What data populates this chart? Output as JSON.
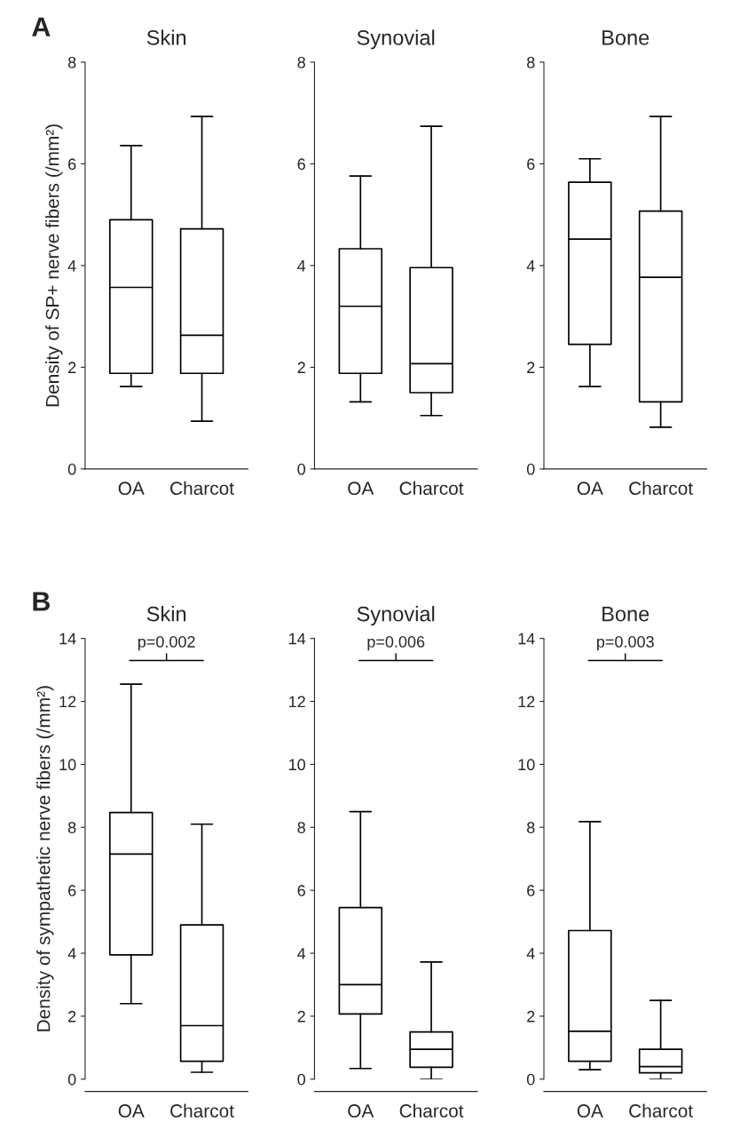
{
  "chart_data": [
    {
      "type": "box",
      "title": "Skin",
      "ylabel": "Density of SP+ nerve fibers (/mm²)",
      "annotations": [
        "A"
      ],
      "categories": [
        "OA",
        "Charcot"
      ],
      "ylim": [
        0,
        8
      ],
      "yticks": [
        0,
        2,
        4,
        6,
        8
      ],
      "grid": false,
      "boxes": [
        {
          "low": 1.62,
          "q1": 1.88,
          "median": 3.57,
          "q3": 4.9,
          "high": 6.36
        },
        {
          "low": 0.94,
          "q1": 1.88,
          "median": 2.63,
          "q3": 4.72,
          "high": 6.93
        }
      ]
    },
    {
      "type": "box",
      "title": "Synovial",
      "categories": [
        "OA",
        "Charcot"
      ],
      "ylim": [
        0,
        8
      ],
      "yticks": [
        0,
        2,
        4,
        6,
        8
      ],
      "grid": false,
      "boxes": [
        {
          "low": 1.32,
          "q1": 1.88,
          "median": 3.2,
          "q3": 4.33,
          "high": 5.76
        },
        {
          "low": 1.05,
          "q1": 1.5,
          "median": 2.07,
          "q3": 3.96,
          "high": 6.74
        }
      ]
    },
    {
      "type": "box",
      "title": "Bone",
      "categories": [
        "OA",
        "Charcot"
      ],
      "ylim": [
        0,
        8
      ],
      "yticks": [
        0,
        2,
        4,
        6,
        8
      ],
      "grid": false,
      "boxes": [
        {
          "low": 1.62,
          "q1": 2.45,
          "median": 4.52,
          "q3": 5.64,
          "high": 6.1
        },
        {
          "low": 0.82,
          "q1": 1.32,
          "median": 3.77,
          "q3": 5.07,
          "high": 6.93
        }
      ]
    },
    {
      "type": "box",
      "title": "Skin",
      "ylabel": "Density of sympathetic nerve fibers (/mm²)",
      "annotations": [
        "B",
        "p=0.002"
      ],
      "categories": [
        "OA",
        "Charcot"
      ],
      "ylim": [
        0,
        14
      ],
      "yticks": [
        0,
        2,
        4,
        6,
        8,
        10,
        12,
        14
      ],
      "grid": false,
      "boxes": [
        {
          "low": 2.4,
          "q1": 3.95,
          "median": 7.15,
          "q3": 8.47,
          "high": 12.55
        },
        {
          "low": 0.22,
          "q1": 0.57,
          "median": 1.7,
          "q3": 4.9,
          "high": 8.1
        }
      ]
    },
    {
      "type": "box",
      "title": "Synovial",
      "annotations": [
        "p=0.006"
      ],
      "categories": [
        "OA",
        "Charcot"
      ],
      "ylim": [
        0,
        14
      ],
      "yticks": [
        0,
        2,
        4,
        6,
        8,
        10,
        12,
        14
      ],
      "grid": false,
      "boxes": [
        {
          "low": 0.34,
          "q1": 2.07,
          "median": 3.0,
          "q3": 5.45,
          "high": 8.5
        },
        {
          "low": 0.0,
          "q1": 0.38,
          "median": 0.95,
          "q3": 1.5,
          "high": 3.72
        }
      ]
    },
    {
      "type": "box",
      "title": "Bone",
      "annotations": [
        "p=0.003"
      ],
      "categories": [
        "OA",
        "Charcot"
      ],
      "ylim": [
        0,
        14
      ],
      "yticks": [
        0,
        2,
        4,
        6,
        8,
        10,
        12,
        14
      ],
      "grid": false,
      "boxes": [
        {
          "low": 0.3,
          "q1": 0.57,
          "median": 1.52,
          "q3": 4.72,
          "high": 8.18
        },
        {
          "low": 0.0,
          "q1": 0.2,
          "median": 0.4,
          "q3": 0.95,
          "high": 2.5
        }
      ]
    }
  ]
}
